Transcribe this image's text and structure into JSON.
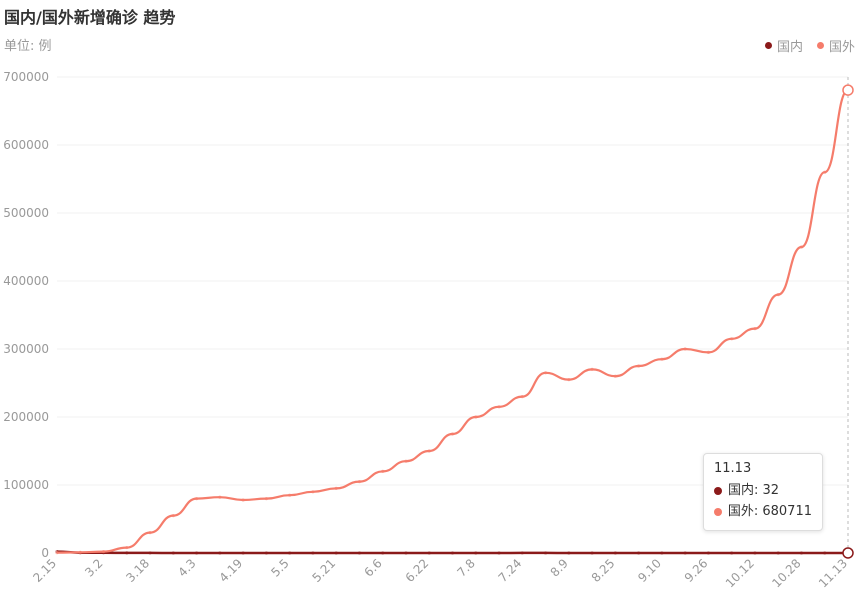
{
  "header": {
    "title": "国内/国外新增确诊 趋势",
    "unit": "单位: 例"
  },
  "legend": [
    {
      "label": "国内",
      "color": "#8b1a1a"
    },
    {
      "label": "国外",
      "color": "#f57c6b"
    }
  ],
  "tooltip": {
    "date": "11.13",
    "rows": [
      {
        "label": "国内: 32",
        "color": "#8b1a1a"
      },
      {
        "label": "国外: 680711",
        "color": "#f57c6b"
      }
    ]
  },
  "chart_data": {
    "type": "line",
    "title": "国内/国外新增确诊 趋势",
    "ylabel": "单位: 例",
    "ylim": [
      0,
      700000
    ],
    "yticks": [
      "0",
      "100000",
      "200000",
      "300000",
      "400000",
      "500000",
      "600000",
      "700000"
    ],
    "x_tick_labels": [
      "2.15",
      "3.2",
      "3.18",
      "4.3",
      "4.19",
      "5.5",
      "5.21",
      "6.6",
      "6.22",
      "7.8",
      "7.24",
      "8.9",
      "8.25",
      "9.10",
      "9.26",
      "10.12",
      "10.28",
      "11.13"
    ],
    "x": [
      "2.15",
      "2.23",
      "3.2",
      "3.10",
      "3.18",
      "3.26",
      "4.3",
      "4.11",
      "4.19",
      "4.27",
      "5.5",
      "5.13",
      "5.21",
      "5.29",
      "6.6",
      "6.14",
      "6.22",
      "6.30",
      "7.8",
      "7.16",
      "7.24",
      "8.1",
      "8.9",
      "8.17",
      "8.25",
      "9.2",
      "9.10",
      "9.18",
      "9.26",
      "10.4",
      "10.12",
      "10.20",
      "10.28",
      "11.5",
      "11.13"
    ],
    "grid": true,
    "legend_position": "top-right",
    "series": [
      {
        "name": "国内",
        "color": "#8b1a1a",
        "values": [
          2000,
          400,
          300,
          150,
          100,
          50,
          40,
          30,
          20,
          10,
          10,
          10,
          10,
          10,
          10,
          20,
          30,
          20,
          10,
          20,
          100,
          80,
          40,
          20,
          20,
          20,
          20,
          20,
          20,
          20,
          20,
          30,
          30,
          40,
          32
        ]
      },
      {
        "name": "国外",
        "color": "#f57c6b",
        "values": [
          500,
          1000,
          2000,
          8000,
          30000,
          55000,
          80000,
          82000,
          78000,
          80000,
          85000,
          90000,
          95000,
          105000,
          120000,
          135000,
          150000,
          175000,
          200000,
          215000,
          230000,
          265000,
          255000,
          270000,
          260000,
          275000,
          285000,
          300000,
          295000,
          315000,
          330000,
          380000,
          450000,
          560000,
          680711
        ]
      }
    ]
  }
}
